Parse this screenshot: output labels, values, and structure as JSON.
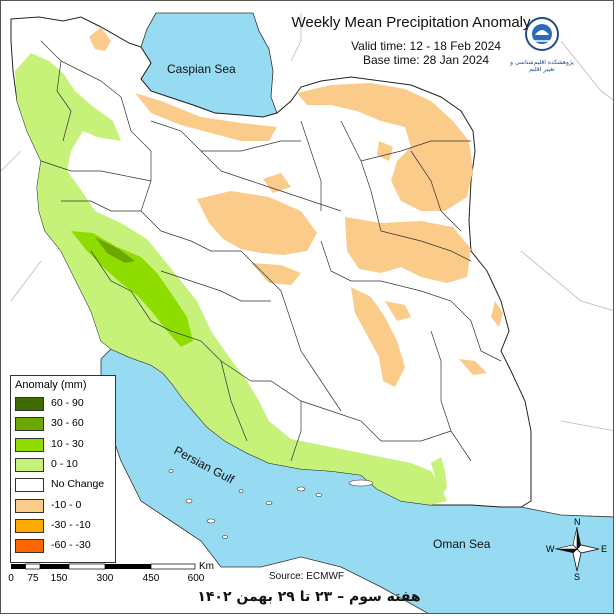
{
  "map": {
    "title": "Weekly Mean Precipitation Anomaly",
    "valid_time": "Valid time:  12 - 18 Feb 2024",
    "base_time": "Base time: 28 Jan 2024",
    "source": "Source: ECMWF",
    "footer": "هفته سوم – ۲۳ تا ۲۹ بهمن ۱۴۰۲",
    "logo_text": "پژوهشکده اقلیم‌شناسی و تغییر اقلیم",
    "water_labels": {
      "caspian": "Caspian Sea",
      "gulf": "Persian Gulf",
      "oman": "Oman Sea"
    },
    "scale": {
      "ticks": [
        "0",
        "75",
        "150",
        "300",
        "450",
        "600"
      ],
      "unit": "Km"
    },
    "compass": {
      "n": "N",
      "s": "S",
      "e": "E",
      "w": "W"
    },
    "legend": {
      "title": "Anomaly (mm)",
      "items": [
        {
          "label": "60 - 90",
          "color": "#3d6b00"
        },
        {
          "label": "30 - 60",
          "color": "#6aa800"
        },
        {
          "label": "10 - 30",
          "color": "#8fdd00"
        },
        {
          "label": "0 - 10",
          "color": "#c6f27a"
        },
        {
          "label": "No Change",
          "color": "#ffffff"
        },
        {
          "label": "-10 - 0",
          "color": "#fbcb8a"
        },
        {
          "label": "-30 - -10",
          "color": "#ffaa00"
        },
        {
          "label": "-60 - -30",
          "color": "#ff6600"
        }
      ]
    },
    "colors": {
      "water": "#97dbf2",
      "land": "#ffffff",
      "outside": "#ffffff"
    }
  }
}
